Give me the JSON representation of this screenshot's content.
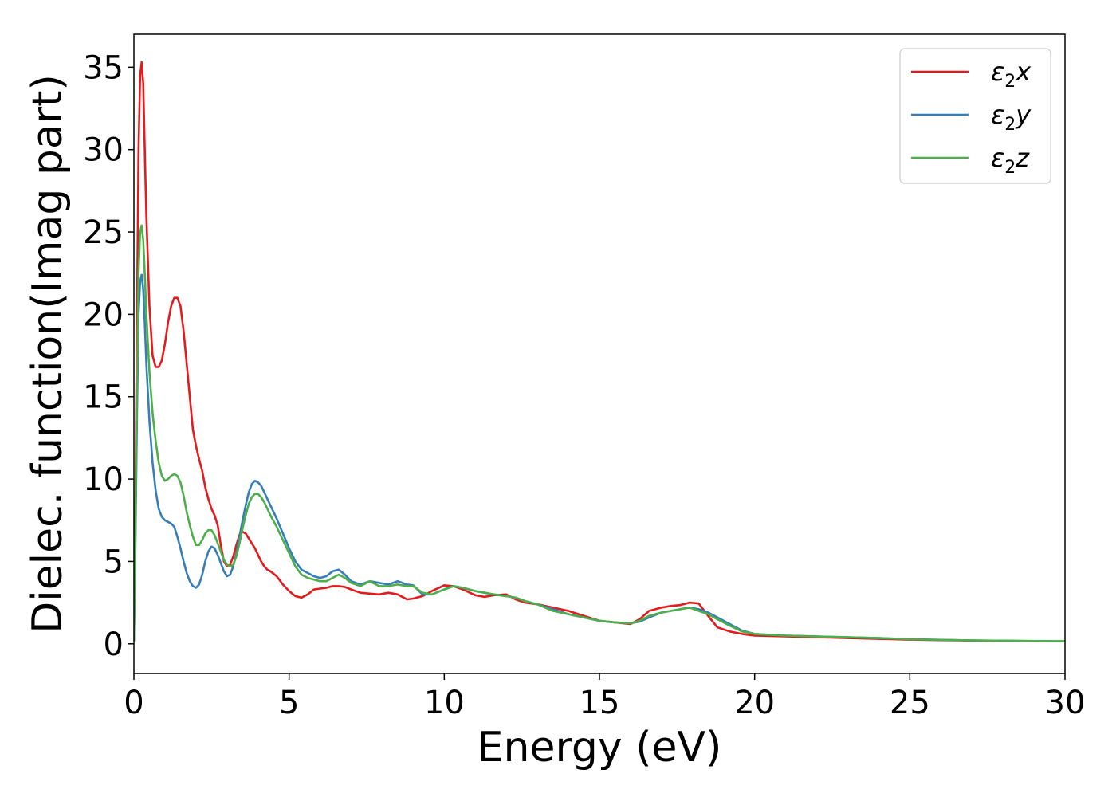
{
  "chart_data": {
    "type": "line",
    "xlabel": "Energy (eV)",
    "ylabel": "Dielec. function(Imag part)",
    "xlim": [
      0,
      30
    ],
    "ylim": [
      -1.8,
      37
    ],
    "xticks": [
      0,
      5,
      10,
      15,
      20,
      25,
      30
    ],
    "yticks": [
      0,
      5,
      10,
      15,
      20,
      25,
      30,
      35
    ],
    "grid": false,
    "legend_position": "top-right",
    "legend": [
      {
        "symbol": "ε",
        "sub": "2",
        "var": "x",
        "color": "#e41a1c"
      },
      {
        "symbol": "ε",
        "sub": "2",
        "var": "y",
        "color": "#377eb8"
      },
      {
        "symbol": "ε",
        "sub": "2",
        "var": "z",
        "color": "#4daf4a"
      }
    ],
    "series": [
      {
        "color": "#e41a1c",
        "x": [
          0,
          0.05,
          0.1,
          0.15,
          0.2,
          0.25,
          0.3,
          0.35,
          0.4,
          0.5,
          0.6,
          0.7,
          0.8,
          0.9,
          1.0,
          1.1,
          1.2,
          1.3,
          1.4,
          1.5,
          1.6,
          1.7,
          1.8,
          1.9,
          2.0,
          2.1,
          2.2,
          2.3,
          2.4,
          2.5,
          2.6,
          2.7,
          2.8,
          2.9,
          3.0,
          3.1,
          3.2,
          3.3,
          3.4,
          3.5,
          3.6,
          3.7,
          3.8,
          3.9,
          4.0,
          4.1,
          4.2,
          4.3,
          4.4,
          4.6,
          4.8,
          5.0,
          5.2,
          5.4,
          5.6,
          5.8,
          6.0,
          6.2,
          6.4,
          6.6,
          6.8,
          7.0,
          7.3,
          7.6,
          7.9,
          8.2,
          8.5,
          8.8,
          9.0,
          9.3,
          9.6,
          10.0,
          10.3,
          10.6,
          11.0,
          11.3,
          11.6,
          12.0,
          12.3,
          12.6,
          13.0,
          13.5,
          14.0,
          14.5,
          15.0,
          15.5,
          16.0,
          16.3,
          16.6,
          17.0,
          17.3,
          17.6,
          17.9,
          18.2,
          18.5,
          18.8,
          19.2,
          19.6,
          20.0,
          21.0,
          22.0,
          23.0,
          24.0,
          25.0,
          26.0,
          27.0,
          28.0,
          29.0,
          30.0
        ],
        "y": [
          0.2,
          8.0,
          20.0,
          30.0,
          34.5,
          35.3,
          34.0,
          30.0,
          26.0,
          20.5,
          17.5,
          16.8,
          16.8,
          17.2,
          18.2,
          19.5,
          20.5,
          21.0,
          21.0,
          20.5,
          19.0,
          17.0,
          15.0,
          13.0,
          12.0,
          11.2,
          10.5,
          9.5,
          8.8,
          8.2,
          7.8,
          7.2,
          6.0,
          5.0,
          4.7,
          4.8,
          5.3,
          6.0,
          6.6,
          6.8,
          6.7,
          6.4,
          6.1,
          5.8,
          5.4,
          5.0,
          4.7,
          4.5,
          4.4,
          4.1,
          3.6,
          3.2,
          2.9,
          2.8,
          3.0,
          3.3,
          3.35,
          3.4,
          3.5,
          3.5,
          3.45,
          3.3,
          3.1,
          3.05,
          3.0,
          3.1,
          3.0,
          2.7,
          2.75,
          2.9,
          3.2,
          3.55,
          3.5,
          3.3,
          2.95,
          2.85,
          2.95,
          3.0,
          2.7,
          2.5,
          2.4,
          2.2,
          2.0,
          1.7,
          1.4,
          1.3,
          1.2,
          1.5,
          2.0,
          2.2,
          2.3,
          2.35,
          2.5,
          2.45,
          1.7,
          1.0,
          0.75,
          0.6,
          0.5,
          0.45,
          0.4,
          0.35,
          0.3,
          0.25,
          0.22,
          0.2,
          0.18,
          0.16,
          0.15
        ]
      },
      {
        "color": "#377eb8",
        "x": [
          0,
          0.05,
          0.1,
          0.15,
          0.2,
          0.25,
          0.3,
          0.35,
          0.4,
          0.5,
          0.6,
          0.7,
          0.8,
          0.9,
          1.0,
          1.1,
          1.2,
          1.3,
          1.4,
          1.5,
          1.6,
          1.7,
          1.8,
          1.9,
          2.0,
          2.1,
          2.2,
          2.3,
          2.4,
          2.5,
          2.6,
          2.7,
          2.8,
          2.9,
          3.0,
          3.1,
          3.2,
          3.3,
          3.4,
          3.5,
          3.6,
          3.7,
          3.8,
          3.9,
          4.0,
          4.1,
          4.2,
          4.3,
          4.4,
          4.6,
          4.8,
          5.0,
          5.2,
          5.4,
          5.6,
          5.8,
          6.0,
          6.2,
          6.4,
          6.6,
          6.8,
          7.0,
          7.3,
          7.6,
          7.9,
          8.2,
          8.5,
          8.8,
          9.0,
          9.3,
          9.6,
          10.0,
          10.3,
          10.6,
          11.0,
          11.3,
          11.6,
          12.0,
          12.3,
          12.6,
          13.0,
          13.5,
          14.0,
          14.5,
          15.0,
          15.5,
          16.0,
          16.3,
          16.6,
          17.0,
          17.3,
          17.6,
          17.9,
          18.2,
          18.5,
          18.8,
          19.2,
          19.6,
          20.0,
          21.0,
          22.0,
          23.0,
          24.0,
          25.0,
          26.0,
          27.0,
          28.0,
          29.0,
          30.0
        ],
        "y": [
          0.2,
          6.0,
          14.0,
          20.0,
          22.0,
          22.4,
          21.5,
          19.5,
          17.0,
          13.5,
          11.0,
          9.3,
          8.2,
          7.7,
          7.5,
          7.4,
          7.3,
          7.1,
          6.5,
          5.8,
          5.0,
          4.3,
          3.8,
          3.5,
          3.4,
          3.6,
          4.2,
          5.0,
          5.6,
          5.9,
          5.8,
          5.4,
          4.9,
          4.4,
          4.1,
          4.2,
          4.7,
          5.5,
          6.5,
          7.5,
          8.4,
          9.2,
          9.7,
          9.9,
          9.8,
          9.6,
          9.2,
          8.8,
          8.4,
          7.6,
          6.7,
          5.8,
          5.0,
          4.5,
          4.3,
          4.1,
          4.0,
          4.1,
          4.4,
          4.5,
          4.2,
          3.8,
          3.6,
          3.8,
          3.7,
          3.6,
          3.8,
          3.6,
          3.55,
          3.0,
          3.0,
          3.3,
          3.5,
          3.4,
          3.2,
          3.1,
          3.0,
          2.9,
          2.8,
          2.6,
          2.4,
          2.1,
          1.8,
          1.6,
          1.4,
          1.3,
          1.25,
          1.35,
          1.6,
          1.9,
          2.0,
          2.1,
          2.2,
          2.1,
          1.9,
          1.6,
          1.2,
          0.8,
          0.6,
          0.5,
          0.45,
          0.4,
          0.35,
          0.28,
          0.24,
          0.21,
          0.19,
          0.17,
          0.15
        ]
      },
      {
        "color": "#4daf4a",
        "x": [
          0,
          0.05,
          0.1,
          0.15,
          0.2,
          0.25,
          0.3,
          0.35,
          0.4,
          0.5,
          0.6,
          0.7,
          0.8,
          0.9,
          1.0,
          1.1,
          1.2,
          1.3,
          1.4,
          1.5,
          1.6,
          1.7,
          1.8,
          1.9,
          2.0,
          2.1,
          2.2,
          2.3,
          2.4,
          2.5,
          2.6,
          2.7,
          2.8,
          2.9,
          3.0,
          3.1,
          3.2,
          3.3,
          3.4,
          3.5,
          3.6,
          3.7,
          3.8,
          3.9,
          4.0,
          4.1,
          4.2,
          4.3,
          4.4,
          4.6,
          4.8,
          5.0,
          5.2,
          5.4,
          5.6,
          5.8,
          6.0,
          6.2,
          6.4,
          6.6,
          6.8,
          7.0,
          7.3,
          7.6,
          7.9,
          8.2,
          8.5,
          8.8,
          9.0,
          9.3,
          9.6,
          10.0,
          10.3,
          10.6,
          11.0,
          11.3,
          11.6,
          12.0,
          12.3,
          12.6,
          13.0,
          13.5,
          14.0,
          14.5,
          15.0,
          15.5,
          16.0,
          16.3,
          16.6,
          17.0,
          17.3,
          17.6,
          17.9,
          18.2,
          18.5,
          18.8,
          19.2,
          19.6,
          20.0,
          21.0,
          22.0,
          23.0,
          24.0,
          25.0,
          26.0,
          27.0,
          28.0,
          29.0,
          30.0
        ],
        "y": [
          0.2,
          7.0,
          16.0,
          22.5,
          25.0,
          25.4,
          24.5,
          22.5,
          20.0,
          16.5,
          14.0,
          12.3,
          11.0,
          10.2,
          9.9,
          10.0,
          10.2,
          10.3,
          10.2,
          9.8,
          9.0,
          8.0,
          7.2,
          6.5,
          6.0,
          6.0,
          6.3,
          6.7,
          6.9,
          6.9,
          6.6,
          6.1,
          5.6,
          5.1,
          4.8,
          4.7,
          4.8,
          5.3,
          6.1,
          7.0,
          7.8,
          8.5,
          8.9,
          9.1,
          9.1,
          8.9,
          8.6,
          8.2,
          7.8,
          7.1,
          6.3,
          5.5,
          4.7,
          4.2,
          4.0,
          3.9,
          3.8,
          3.8,
          4.0,
          4.2,
          4.0,
          3.7,
          3.5,
          3.8,
          3.5,
          3.5,
          3.6,
          3.5,
          3.5,
          3.1,
          3.0,
          3.3,
          3.5,
          3.4,
          3.2,
          3.1,
          3.0,
          2.9,
          2.8,
          2.6,
          2.4,
          2.0,
          1.8,
          1.6,
          1.4,
          1.3,
          1.25,
          1.4,
          1.7,
          1.9,
          2.0,
          2.1,
          2.2,
          2.0,
          1.8,
          1.5,
          1.1,
          0.75,
          0.6,
          0.5,
          0.45,
          0.4,
          0.35,
          0.28,
          0.24,
          0.21,
          0.19,
          0.17,
          0.15
        ]
      }
    ]
  }
}
